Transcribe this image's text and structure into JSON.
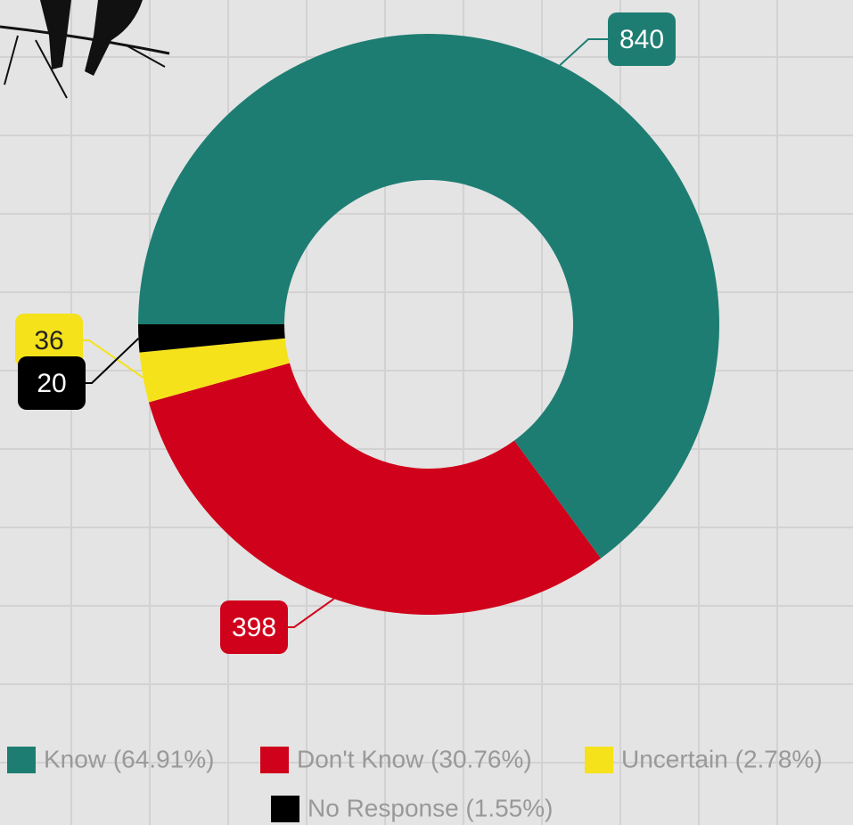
{
  "chart_data": {
    "type": "donut",
    "categories": [
      "Know (64.91%)",
      "Don't Know (30.76%)",
      "Uncertain (2.78%)",
      "No Response (1.55%)"
    ],
    "values": [
      840,
      398,
      36,
      20
    ],
    "colors": [
      "#1e7d72",
      "#d0021b",
      "#f5e21a",
      "#000000"
    ],
    "legend": "bottom"
  }
}
